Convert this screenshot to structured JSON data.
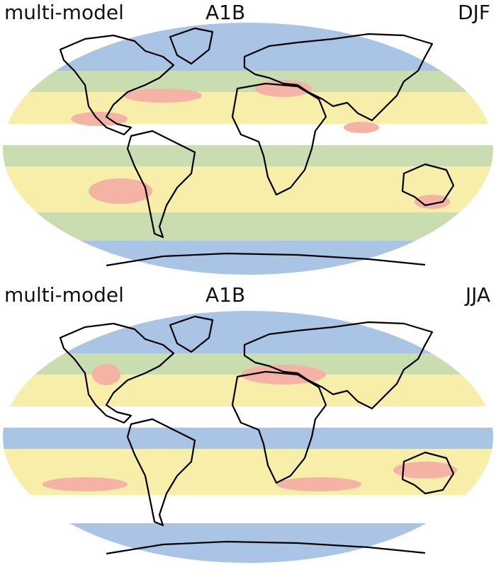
{
  "panels": [
    {
      "label_left": "multi-model",
      "label_center": "A1B",
      "label_right": "DJF",
      "bands": [
        {
          "name": "arctic",
          "color": "#a9c4e4"
        },
        {
          "name": "northern-mid",
          "color": "#c9ddb0"
        },
        {
          "name": "subtropical-north",
          "color": "#f7eeaa"
        },
        {
          "name": "tropics",
          "color": "#ffffff"
        },
        {
          "name": "equatorial",
          "color": "#c9ddb0"
        },
        {
          "name": "subtropical-south",
          "color": "#f7eeaa"
        },
        {
          "name": "southern-mid",
          "color": "#c9ddb0"
        },
        {
          "name": "southern-ocean",
          "color": "#a9c4e4"
        }
      ]
    },
    {
      "label_left": "multi-model",
      "label_center": "A1B",
      "label_right": "JJA",
      "bands": [
        {
          "name": "arctic",
          "color": "#a9c4e4"
        },
        {
          "name": "northern-mid",
          "color": "#c9ddb0"
        },
        {
          "name": "subtropical-north",
          "color": "#f7eeaa"
        },
        {
          "name": "tropics",
          "color": "#ffffff"
        },
        {
          "name": "equatorial",
          "color": "#a9c4e4"
        },
        {
          "name": "subtropical-south",
          "color": "#f7eeaa"
        },
        {
          "name": "southern-mid",
          "color": "#ffffff"
        },
        {
          "name": "southern-ocean",
          "color": "#a9c4e4"
        }
      ]
    }
  ],
  "colors": {
    "blue": "#a9c4e4",
    "green": "#c9ddb0",
    "yellow": "#f7eeaa",
    "red": "#f4b3a4",
    "white": "#ffffff",
    "coast": "#000000"
  }
}
